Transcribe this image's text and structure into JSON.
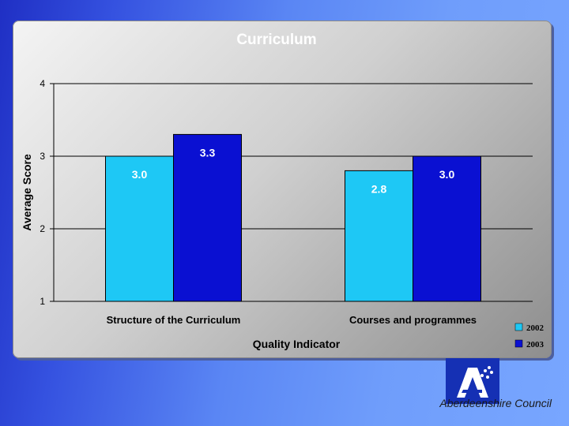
{
  "chart_data": {
    "type": "bar",
    "title": "Curriculum",
    "xlabel": "Quality Indicator",
    "ylabel": "Average Score",
    "ylim": [
      1,
      4
    ],
    "yticks": [
      1,
      2,
      3,
      4
    ],
    "grid": true,
    "legend_position": "bottom-right",
    "categories": [
      "Structure of the Curriculum",
      "Courses and programmes"
    ],
    "series": [
      {
        "name": "2002",
        "values": [
          3.0,
          2.8
        ],
        "labels": [
          "3.0",
          "2.8"
        ],
        "color": "#1ec8f5"
      },
      {
        "name": "2003",
        "values": [
          3.3,
          3.0
        ],
        "labels": [
          "3.3",
          "3.0"
        ],
        "color": "#0a10d2"
      }
    ]
  },
  "footer": {
    "org_name": "Aberdeenshire Council",
    "logo_icon": "aberdeenshire-a-logo-icon"
  }
}
